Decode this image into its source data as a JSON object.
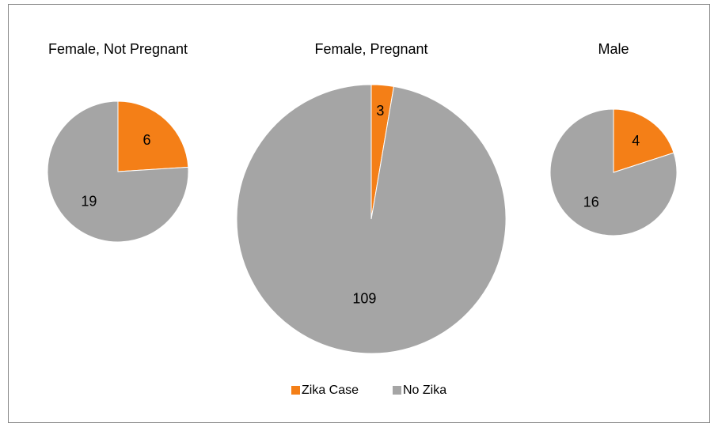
{
  "chart_data": [
    {
      "type": "pie",
      "title": "Female, Not Pregnant",
      "categories": [
        "Zika Case",
        "No Zika"
      ],
      "values": [
        6,
        19
      ],
      "colors": [
        "#f47f17",
        "#a5a5a5"
      ],
      "legend": "bottom"
    },
    {
      "type": "pie",
      "title": "Female, Pregnant",
      "categories": [
        "Zika Case",
        "No Zika"
      ],
      "values": [
        3,
        109
      ],
      "colors": [
        "#f47f17",
        "#a5a5a5"
      ],
      "legend": "bottom"
    },
    {
      "type": "pie",
      "title": "Male",
      "categories": [
        "Zika Case",
        "No Zika"
      ],
      "values": [
        4,
        16
      ],
      "colors": [
        "#f47f17",
        "#a5a5a5"
      ],
      "legend": "bottom"
    }
  ]
}
